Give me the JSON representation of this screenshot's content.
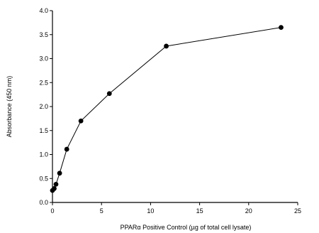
{
  "chart_data": {
    "type": "line",
    "title": "",
    "xlabel": "PPARα Positive Control (µg of total cell lysate)",
    "ylabel": "Absorbance (450 nm)",
    "xlim": [
      0,
      25
    ],
    "ylim": [
      0,
      4.0
    ],
    "x_ticks": [
      0,
      5,
      10,
      15,
      20,
      25
    ],
    "y_ticks": [
      0.0,
      0.5,
      1.0,
      1.5,
      2.0,
      2.5,
      3.0,
      3.5,
      4.0
    ],
    "x_tick_labels": [
      "0",
      "5",
      "10",
      "15",
      "20",
      "25"
    ],
    "y_tick_labels": [
      "0.0",
      "0.5",
      "1.0",
      "1.5",
      "2.0",
      "2.5",
      "3.0",
      "3.5",
      "4.0"
    ],
    "grid": false,
    "series": [
      {
        "x": [
          0.0,
          0.18,
          0.36,
          0.73,
          1.46,
          2.9,
          5.8,
          11.6,
          23.3
        ],
        "y": [
          0.25,
          0.29,
          0.38,
          0.61,
          1.11,
          1.7,
          2.27,
          3.26,
          3.65
        ],
        "marker": "circle",
        "color": "#000000"
      }
    ]
  }
}
